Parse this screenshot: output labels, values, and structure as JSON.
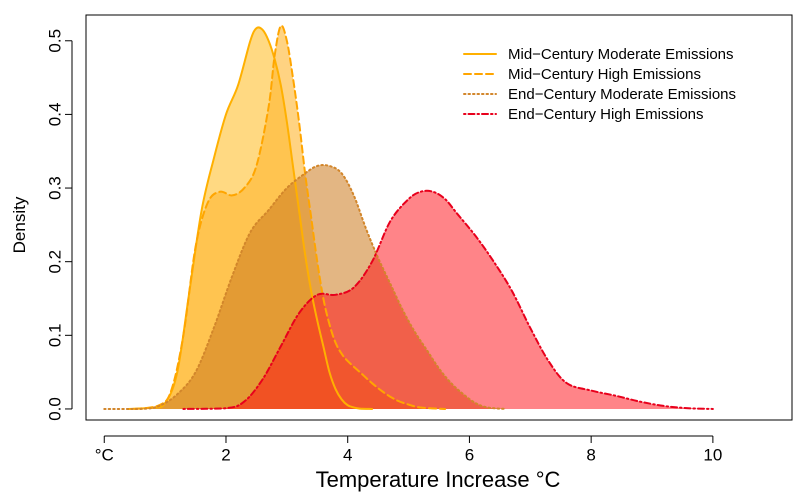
{
  "chart_data": {
    "type": "area",
    "title": "",
    "xlabel": "Temperature Increase °C",
    "ylabel": "Density",
    "xlim": [
      -0.3,
      11.3
    ],
    "ylim": [
      -0.015,
      0.535
    ],
    "x_ticks": [
      0,
      2,
      4,
      6,
      8,
      10
    ],
    "x_tick_labels": [
      "°C",
      "2",
      "4",
      "6",
      "8",
      "10"
    ],
    "y_ticks": [
      0.0,
      0.1,
      0.2,
      0.3,
      0.4,
      0.5
    ],
    "y_tick_labels": [
      "0.0",
      "0.1",
      "0.2",
      "0.3",
      "0.4",
      "0.5"
    ],
    "grid": false,
    "legend_position": "top-right",
    "series": [
      {
        "name": "Mid−Century Moderate Emissions",
        "line_style": "solid",
        "line_color": "#FFB000",
        "fill_color": "#FFBF2E",
        "fill_opacity": 0.6,
        "x": [
          0.4,
          0.8,
          1.0,
          1.2,
          1.4,
          1.6,
          1.8,
          2.0,
          2.2,
          2.4,
          2.5,
          2.6,
          2.7,
          2.8,
          2.9,
          3.0,
          3.1,
          3.2,
          3.3,
          3.4,
          3.5,
          3.6,
          3.7,
          3.8,
          3.9,
          4.0,
          4.1,
          4.2,
          4.4
        ],
        "values": [
          0.0,
          0.002,
          0.008,
          0.05,
          0.16,
          0.27,
          0.34,
          0.4,
          0.44,
          0.5,
          0.517,
          0.515,
          0.5,
          0.475,
          0.44,
          0.39,
          0.33,
          0.27,
          0.21,
          0.16,
          0.12,
          0.085,
          0.05,
          0.027,
          0.013,
          0.005,
          0.002,
          0.0005,
          0.0
        ]
      },
      {
        "name": "Mid−Century High Emissions",
        "line_style": "dashed",
        "line_color": "#FFA500",
        "fill_color": "#FFB52E",
        "fill_opacity": 0.6,
        "x": [
          0.5,
          0.9,
          1.1,
          1.3,
          1.5,
          1.7,
          1.9,
          2.1,
          2.3,
          2.5,
          2.7,
          2.8,
          2.9,
          3.0,
          3.1,
          3.2,
          3.3,
          3.4,
          3.5,
          3.6,
          3.7,
          3.8,
          3.9,
          4.0,
          4.2,
          4.4,
          4.6,
          4.8,
          5.0,
          5.2,
          5.6
        ],
        "values": [
          0.0,
          0.005,
          0.025,
          0.1,
          0.22,
          0.28,
          0.295,
          0.29,
          0.3,
          0.33,
          0.41,
          0.48,
          0.52,
          0.5,
          0.45,
          0.39,
          0.32,
          0.26,
          0.2,
          0.15,
          0.115,
          0.09,
          0.075,
          0.065,
          0.05,
          0.035,
          0.022,
          0.012,
          0.006,
          0.002,
          0.0
        ]
      },
      {
        "name": "End−Century Moderate Emissions",
        "line_style": "dotted",
        "line_color": "#D2862B",
        "fill_color": "#CC7A1E",
        "fill_opacity": 0.55,
        "x": [
          0.0,
          0.6,
          0.9,
          1.2,
          1.5,
          1.8,
          2.1,
          2.4,
          2.7,
          3.0,
          3.3,
          3.5,
          3.7,
          3.9,
          4.1,
          4.3,
          4.5,
          4.7,
          4.9,
          5.1,
          5.3,
          5.5,
          5.7,
          5.9,
          6.1,
          6.3,
          6.6
        ],
        "values": [
          0.0,
          0.0,
          0.004,
          0.02,
          0.05,
          0.11,
          0.18,
          0.24,
          0.27,
          0.3,
          0.32,
          0.33,
          0.33,
          0.32,
          0.29,
          0.245,
          0.205,
          0.17,
          0.135,
          0.105,
          0.08,
          0.055,
          0.035,
          0.02,
          0.008,
          0.002,
          0.0
        ]
      },
      {
        "name": "End−Century High Emissions",
        "line_style": "dotdash",
        "line_color": "#E8001C",
        "fill_color": "#FF0A12",
        "fill_opacity": 0.5,
        "x": [
          1.3,
          2.0,
          2.3,
          2.6,
          2.9,
          3.2,
          3.5,
          3.8,
          4.1,
          4.4,
          4.7,
          5.0,
          5.2,
          5.4,
          5.6,
          5.8,
          6.1,
          6.4,
          6.7,
          7.0,
          7.3,
          7.6,
          8.0,
          8.4,
          8.8,
          9.2,
          9.6,
          10.0
        ],
        "values": [
          0.0,
          0.001,
          0.01,
          0.04,
          0.085,
          0.13,
          0.155,
          0.155,
          0.165,
          0.2,
          0.255,
          0.285,
          0.295,
          0.295,
          0.285,
          0.265,
          0.235,
          0.2,
          0.16,
          0.11,
          0.065,
          0.035,
          0.025,
          0.018,
          0.01,
          0.004,
          0.001,
          0.0
        ]
      }
    ]
  }
}
